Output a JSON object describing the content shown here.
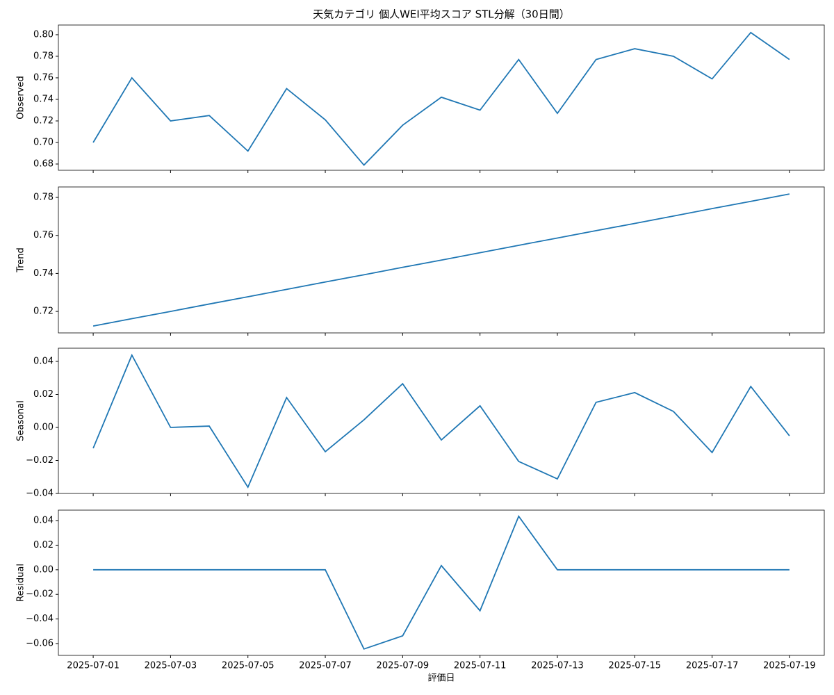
{
  "chart_data": [
    {
      "type": "line",
      "title": "天気カテゴリ 個人WEI平均スコア STL分解（30日間）",
      "ylabel": "Observed",
      "x": [
        "2025-07-01",
        "2025-07-02",
        "2025-07-03",
        "2025-07-04",
        "2025-07-05",
        "2025-07-06",
        "2025-07-07",
        "2025-07-08",
        "2025-07-09",
        "2025-07-10",
        "2025-07-11",
        "2025-07-12",
        "2025-07-13",
        "2025-07-14",
        "2025-07-15",
        "2025-07-16",
        "2025-07-17",
        "2025-07-18",
        "2025-07-19"
      ],
      "series": [
        {
          "color": "#1f77b4",
          "values": [
            0.7,
            0.76,
            0.72,
            0.725,
            0.692,
            0.75,
            0.721,
            0.679,
            0.716,
            0.742,
            0.73,
            0.777,
            0.727,
            0.777,
            0.787,
            0.78,
            0.759,
            0.802,
            0.777
          ]
        }
      ],
      "ylim": [
        0.6742,
        0.809
      ],
      "yticks": [
        {
          "value": 0.68,
          "label": "0.68"
        },
        {
          "value": 0.7,
          "label": "0.70"
        },
        {
          "value": 0.72,
          "label": "0.72"
        },
        {
          "value": 0.74,
          "label": "0.74"
        },
        {
          "value": 0.76,
          "label": "0.76"
        },
        {
          "value": 0.78,
          "label": "0.78"
        },
        {
          "value": 0.8,
          "label": "0.80"
        }
      ]
    },
    {
      "type": "line",
      "ylabel": "Trend",
      "x": [
        "2025-07-01",
        "2025-07-02",
        "2025-07-03",
        "2025-07-04",
        "2025-07-05",
        "2025-07-06",
        "2025-07-07",
        "2025-07-08",
        "2025-07-09",
        "2025-07-10",
        "2025-07-11",
        "2025-07-12",
        "2025-07-13",
        "2025-07-14",
        "2025-07-15",
        "2025-07-16",
        "2025-07-17",
        "2025-07-18",
        "2025-07-19"
      ],
      "series": [
        {
          "color": "#1f77b4",
          "values": [
            0.7123,
            0.7162,
            0.72,
            0.7239,
            0.7277,
            0.7316,
            0.7355,
            0.7393,
            0.7432,
            0.747,
            0.7509,
            0.7548,
            0.7586,
            0.7625,
            0.7663,
            0.7702,
            0.7741,
            0.7779,
            0.7818
          ]
        }
      ],
      "ylim": [
        0.7087,
        0.7855
      ],
      "yticks": [
        {
          "value": 0.72,
          "label": "0.72"
        },
        {
          "value": 0.74,
          "label": "0.74"
        },
        {
          "value": 0.76,
          "label": "0.76"
        },
        {
          "value": 0.78,
          "label": "0.78"
        }
      ]
    },
    {
      "type": "line",
      "ylabel": "Seasonal",
      "x": [
        "2025-07-01",
        "2025-07-02",
        "2025-07-03",
        "2025-07-04",
        "2025-07-05",
        "2025-07-06",
        "2025-07-07",
        "2025-07-08",
        "2025-07-09",
        "2025-07-10",
        "2025-07-11",
        "2025-07-12",
        "2025-07-13",
        "2025-07-14",
        "2025-07-15",
        "2025-07-16",
        "2025-07-17",
        "2025-07-18",
        "2025-07-19"
      ],
      "series": [
        {
          "color": "#1f77b4",
          "values": [
            -0.0126,
            0.0438,
            0.0,
            0.0008,
            -0.0362,
            0.0181,
            -0.0147,
            0.0046,
            0.0265,
            -0.0076,
            0.0131,
            -0.0206,
            -0.0312,
            0.0152,
            0.0211,
            0.0097,
            -0.0152,
            0.0248,
            -0.0051
          ]
        }
      ],
      "ylim": [
        -0.04,
        0.048
      ],
      "yticks": [
        {
          "value": -0.04,
          "label": "−0.04"
        },
        {
          "value": -0.02,
          "label": "−0.02"
        },
        {
          "value": 0,
          "label": "0.00"
        },
        {
          "value": 0.02,
          "label": "0.02"
        },
        {
          "value": 0.04,
          "label": "0.04"
        }
      ]
    },
    {
      "type": "line",
      "ylabel": "Residual",
      "xlabel": "評価日",
      "x": [
        "2025-07-01",
        "2025-07-02",
        "2025-07-03",
        "2025-07-04",
        "2025-07-05",
        "2025-07-06",
        "2025-07-07",
        "2025-07-08",
        "2025-07-09",
        "2025-07-10",
        "2025-07-11",
        "2025-07-12",
        "2025-07-13",
        "2025-07-14",
        "2025-07-15",
        "2025-07-16",
        "2025-07-17",
        "2025-07-18",
        "2025-07-19"
      ],
      "series": [
        {
          "color": "#1f77b4",
          "values": [
            0,
            0,
            0,
            0,
            0,
            0,
            0,
            -0.0644,
            -0.0537,
            0.0034,
            -0.0333,
            0.0435,
            0,
            0,
            0,
            0,
            0,
            0,
            0
          ]
        }
      ],
      "ylim": [
        -0.0696,
        0.0485
      ],
      "yticks": [
        {
          "value": -0.06,
          "label": "−0.06"
        },
        {
          "value": -0.04,
          "label": "−0.04"
        },
        {
          "value": -0.02,
          "label": "−0.02"
        },
        {
          "value": 0,
          "label": "0.00"
        },
        {
          "value": 0.02,
          "label": "0.02"
        },
        {
          "value": 0.04,
          "label": "0.04"
        }
      ],
      "xticks": [
        "2025-07-01",
        "2025-07-03",
        "2025-07-05",
        "2025-07-07",
        "2025-07-09",
        "2025-07-11",
        "2025-07-13",
        "2025-07-15",
        "2025-07-17",
        "2025-07-19"
      ]
    }
  ]
}
